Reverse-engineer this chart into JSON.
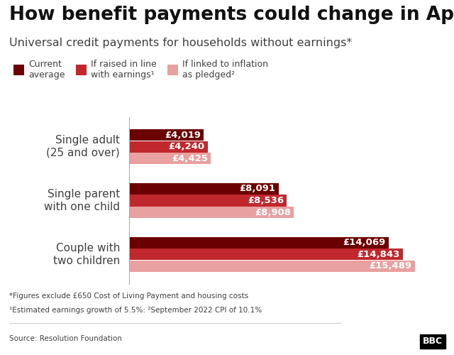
{
  "title": "How benefit payments could change in April",
  "subtitle": "Universal credit payments for households without earnings*",
  "categories": [
    "Single adult\n(25 and over)",
    "Single parent\nwith one child",
    "Couple with\ntwo children"
  ],
  "series": {
    "current": [
      4019,
      8091,
      14069
    ],
    "earnings": [
      4240,
      8536,
      14843
    ],
    "inflation": [
      4425,
      8908,
      15489
    ]
  },
  "colors": {
    "current": "#6B0000",
    "earnings": "#C0282D",
    "inflation": "#E8A0A0"
  },
  "legend_labels": [
    "Current\naverage",
    "If raised in line\nwith earnings¹",
    "If linked to inflation\nas pledged²"
  ],
  "bar_height": 0.22,
  "xlim": [
    0,
    17000
  ],
  "footnote1": "*Figures exclude £650 Cost of Living Payment and housing costs",
  "footnote2": "¹Estimated earnings growth of 5.5%: ²September 2022 CPI of 10.1%",
  "source": "Source: Resolution Foundation",
  "label_color": "#ffffff",
  "label_fontsize": 9.5,
  "title_fontsize": 19,
  "subtitle_fontsize": 11.5,
  "background_color": "#ffffff",
  "text_color": "#404040",
  "category_fontsize": 11
}
